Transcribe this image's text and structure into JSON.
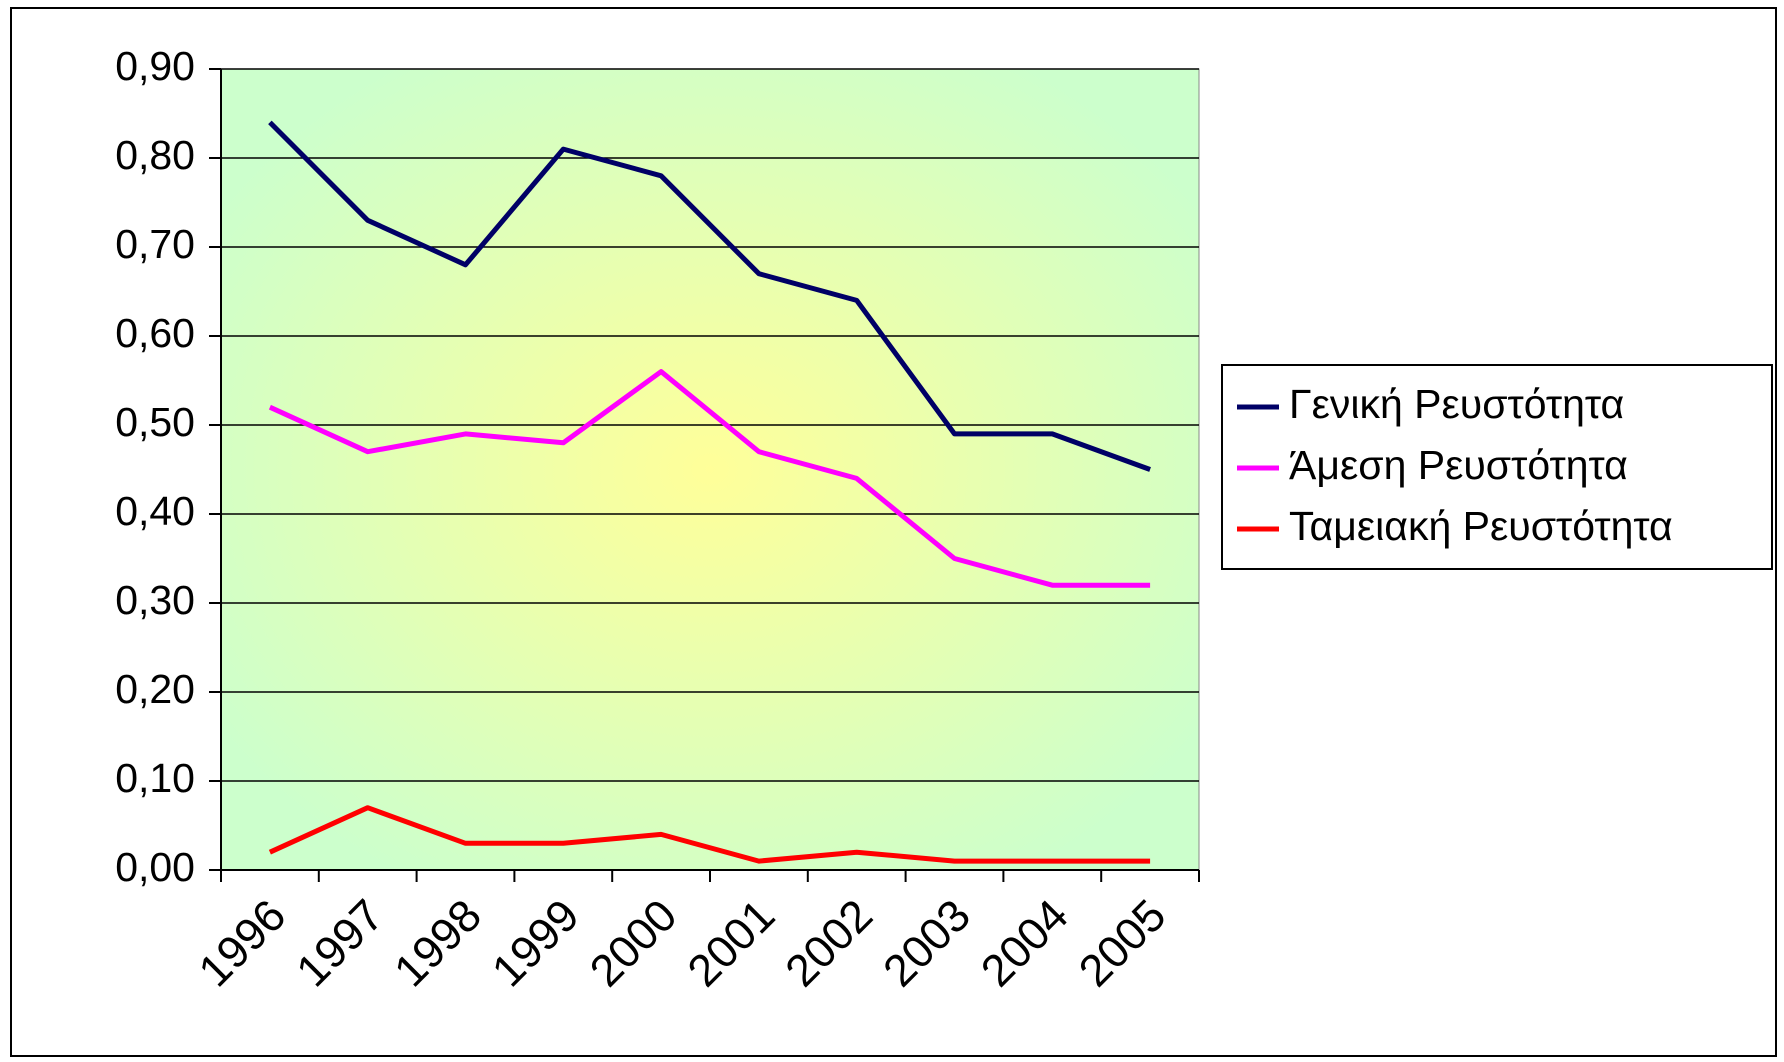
{
  "chart_data": {
    "type": "line",
    "categories": [
      "1996",
      "1997",
      "1998",
      "1999",
      "2000",
      "2001",
      "2002",
      "2003",
      "2004",
      "2005"
    ],
    "series": [
      {
        "name": "Γενική Ρευστότητα",
        "color": "#000066",
        "values": [
          0.84,
          0.73,
          0.68,
          0.81,
          0.78,
          0.67,
          0.64,
          0.49,
          0.49,
          0.45
        ]
      },
      {
        "name": "Άμεση Ρευστότητα",
        "color": "#ff00ff",
        "values": [
          0.52,
          0.47,
          0.49,
          0.48,
          0.56,
          0.47,
          0.44,
          0.35,
          0.32,
          0.32
        ]
      },
      {
        "name": "Ταμειακή Ρευστότητα",
        "color": "#ff0000",
        "values": [
          0.02,
          0.07,
          0.03,
          0.03,
          0.04,
          0.01,
          0.02,
          0.01,
          0.01,
          0.01
        ]
      }
    ],
    "ylim": [
      0,
      0.9
    ],
    "yticks": [
      {
        "value": 0,
        "label": "0,00"
      },
      {
        "value": 0.1,
        "label": "0,10"
      },
      {
        "value": 0.2,
        "label": "0,20"
      },
      {
        "value": 0.3,
        "label": "0,30"
      },
      {
        "value": 0.4,
        "label": "0,40"
      },
      {
        "value": 0.5,
        "label": "0,50"
      },
      {
        "value": 0.6,
        "label": "0,60"
      },
      {
        "value": 0.7,
        "label": "0,70"
      },
      {
        "value": 0.8,
        "label": "0,80"
      },
      {
        "value": 0.9,
        "label": "0,90"
      }
    ],
    "grid": true,
    "legend": "right"
  }
}
